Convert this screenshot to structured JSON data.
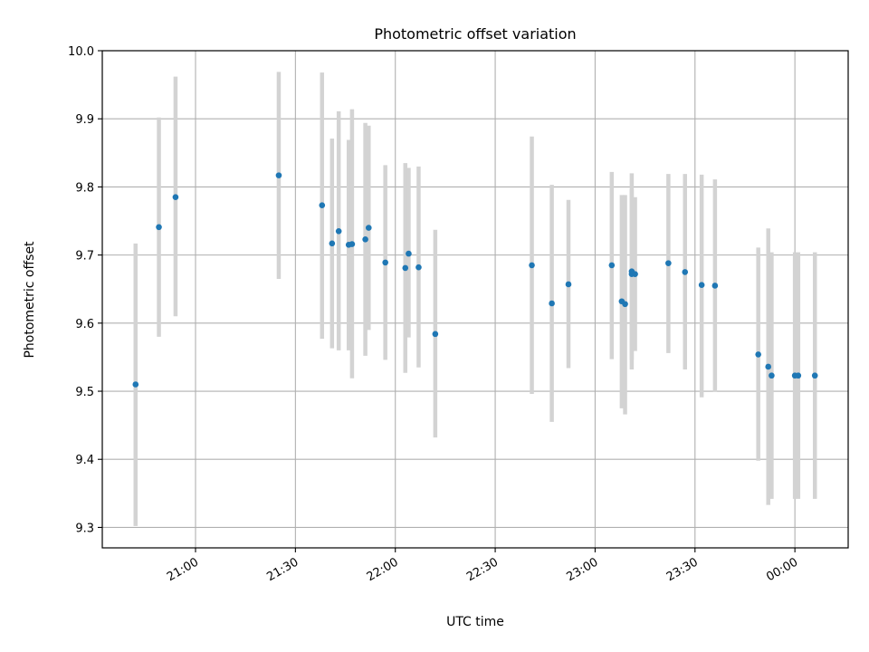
{
  "chart_data": {
    "type": "scatter",
    "title": "Photometric offset variation",
    "xlabel": "UTC time",
    "ylabel": "Photometric offset",
    "x_ticks": [
      "21:00",
      "21:30",
      "22:00",
      "22:30",
      "23:00",
      "23:30",
      "00:00"
    ],
    "y_ticks": [
      "9.3",
      "9.4",
      "9.5",
      "9.6",
      "9.7",
      "9.8",
      "9.9",
      "10.0"
    ],
    "xlim": [
      "20:32",
      "00:16"
    ],
    "ylim": [
      9.27,
      10.0
    ],
    "grid": true,
    "legend": "none",
    "colors": {
      "points": "#1f77b4",
      "error_bars": "#d3d3d3",
      "grid": "#b0b0b0"
    },
    "points": [
      {
        "x": "20:42",
        "y": 9.51,
        "ylow": 9.302,
        "yhigh": 9.717
      },
      {
        "x": "20:49",
        "y": 9.741,
        "ylow": 9.58,
        "yhigh": 9.902
      },
      {
        "x": "20:54",
        "y": 9.785,
        "ylow": 9.61,
        "yhigh": 9.962
      },
      {
        "x": "21:25",
        "y": 9.817,
        "ylow": 9.665,
        "yhigh": 9.969
      },
      {
        "x": "21:38",
        "y": 9.773,
        "ylow": 9.577,
        "yhigh": 9.968
      },
      {
        "x": "21:41",
        "y": 9.717,
        "ylow": 9.563,
        "yhigh": 9.871
      },
      {
        "x": "21:43",
        "y": 9.735,
        "ylow": 9.56,
        "yhigh": 9.911
      },
      {
        "x": "21:46",
        "y": 9.715,
        "ylow": 9.56,
        "yhigh": 9.869
      },
      {
        "x": "21:47",
        "y": 9.716,
        "ylow": 9.519,
        "yhigh": 9.914
      },
      {
        "x": "21:51",
        "y": 9.723,
        "ylow": 9.552,
        "yhigh": 9.894
      },
      {
        "x": "21:52",
        "y": 9.74,
        "ylow": 9.59,
        "yhigh": 9.89
      },
      {
        "x": "21:57",
        "y": 9.689,
        "ylow": 9.546,
        "yhigh": 9.832
      },
      {
        "x": "22:03",
        "y": 9.681,
        "ylow": 9.527,
        "yhigh": 9.835
      },
      {
        "x": "22:04",
        "y": 9.702,
        "ylow": 9.579,
        "yhigh": 9.828
      },
      {
        "x": "22:07",
        "y": 9.682,
        "ylow": 9.535,
        "yhigh": 9.83
      },
      {
        "x": "22:12",
        "y": 9.584,
        "ylow": 9.432,
        "yhigh": 9.737
      },
      {
        "x": "22:41",
        "y": 9.685,
        "ylow": 9.496,
        "yhigh": 9.874
      },
      {
        "x": "22:47",
        "y": 9.629,
        "ylow": 9.455,
        "yhigh": 9.803
      },
      {
        "x": "22:52",
        "y": 9.657,
        "ylow": 9.534,
        "yhigh": 9.781
      },
      {
        "x": "23:05",
        "y": 9.685,
        "ylow": 9.547,
        "yhigh": 9.822
      },
      {
        "x": "23:08",
        "y": 9.632,
        "ylow": 9.475,
        "yhigh": 9.788
      },
      {
        "x": "23:09",
        "y": 9.628,
        "ylow": 9.466,
        "yhigh": 9.788
      },
      {
        "x": "23:11",
        "y": 9.676,
        "ylow": 9.532,
        "yhigh": 9.82
      },
      {
        "x": "23:11",
        "y": 9.672,
        "ylow": 9.546,
        "yhigh": 9.797
      },
      {
        "x": "23:12",
        "y": 9.672,
        "ylow": 9.559,
        "yhigh": 9.785
      },
      {
        "x": "23:22",
        "y": 9.688,
        "ylow": 9.556,
        "yhigh": 9.819
      },
      {
        "x": "23:27",
        "y": 9.675,
        "ylow": 9.532,
        "yhigh": 9.819
      },
      {
        "x": "23:32",
        "y": 9.656,
        "ylow": 9.491,
        "yhigh": 9.818
      },
      {
        "x": "23:36",
        "y": 9.655,
        "ylow": 9.499,
        "yhigh": 9.811
      },
      {
        "x": "23:49",
        "y": 9.554,
        "ylow": 9.398,
        "yhigh": 9.711
      },
      {
        "x": "23:52",
        "y": 9.536,
        "ylow": 9.333,
        "yhigh": 9.739
      },
      {
        "x": "23:53",
        "y": 9.523,
        "ylow": 9.342,
        "yhigh": 9.704
      },
      {
        "x": "00:00",
        "y": 9.523,
        "ylow": 9.342,
        "yhigh": 9.704
      },
      {
        "x": "00:01",
        "y": 9.523,
        "ylow": 9.342,
        "yhigh": 9.704
      },
      {
        "x": "00:06",
        "y": 9.523,
        "ylow": 9.342,
        "yhigh": 9.704
      }
    ]
  }
}
